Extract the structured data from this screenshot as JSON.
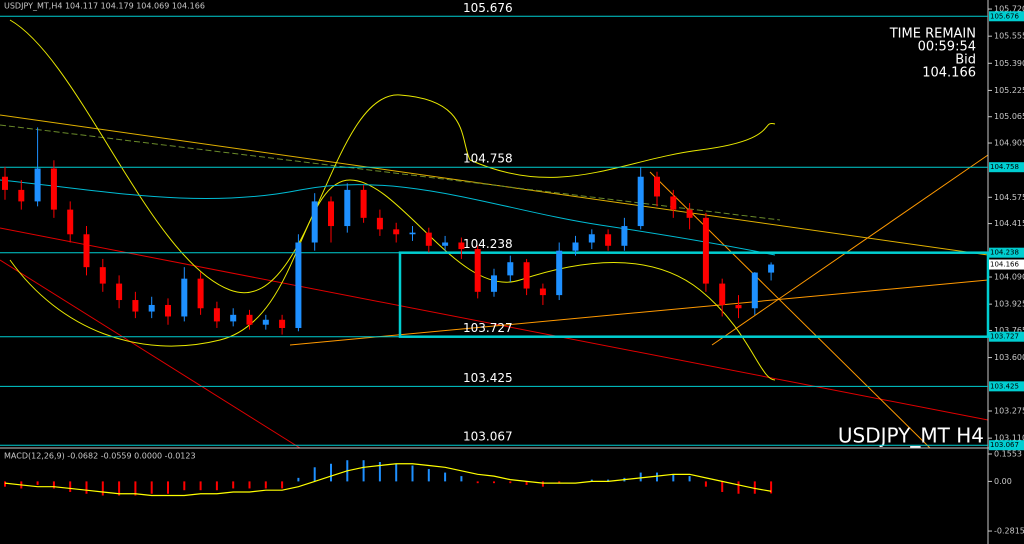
{
  "chart_data": [
    {
      "type": "candlestick",
      "title": "USDJPY_MT,H4 104.117 104.179 104.069 104.166",
      "watermark": "USDJPY_MT H4",
      "annotations": [
        "TIME REMAIN",
        "00:59:54",
        "Bid"
      ],
      "bid": 104.166,
      "open": [
        104.7,
        104.62,
        104.55,
        104.75,
        104.5,
        104.35,
        104.15,
        104.05,
        103.95,
        103.88,
        103.92,
        103.85,
        104.08,
        103.9,
        103.82,
        103.86,
        103.8,
        103.83,
        103.78,
        104.3,
        104.55,
        104.4,
        104.62,
        104.45,
        104.38,
        104.35,
        104.36,
        104.28,
        104.3,
        104.26,
        104.0,
        104.1,
        104.18,
        104.02,
        103.98,
        104.25,
        104.3,
        104.35,
        104.28,
        104.4,
        104.7,
        104.58,
        104.5,
        104.45,
        104.05,
        103.92,
        103.9,
        104.117
      ],
      "high": [
        104.76,
        104.68,
        105.0,
        104.8,
        104.55,
        104.4,
        104.2,
        104.1,
        104.0,
        103.97,
        103.96,
        104.15,
        104.12,
        103.94,
        103.9,
        103.89,
        103.86,
        103.86,
        104.35,
        104.6,
        104.58,
        104.66,
        104.65,
        104.5,
        104.42,
        104.4,
        104.39,
        104.34,
        104.33,
        104.28,
        104.14,
        104.22,
        104.2,
        104.05,
        104.3,
        104.34,
        104.38,
        104.38,
        104.45,
        104.76,
        104.73,
        104.62,
        104.54,
        104.48,
        104.08,
        103.98,
        104.12,
        104.179
      ],
      "low": [
        104.56,
        104.5,
        104.52,
        104.45,
        104.3,
        104.1,
        104.0,
        103.9,
        103.84,
        103.84,
        103.8,
        103.82,
        103.86,
        103.78,
        103.79,
        103.77,
        103.77,
        103.74,
        103.76,
        104.25,
        104.3,
        104.36,
        104.42,
        104.34,
        104.3,
        104.31,
        104.24,
        104.25,
        104.2,
        103.96,
        103.97,
        104.06,
        103.98,
        103.92,
        103.95,
        104.22,
        104.26,
        104.25,
        104.25,
        104.38,
        104.52,
        104.45,
        104.38,
        104.0,
        103.85,
        103.84,
        103.86,
        104.069
      ],
      "close": [
        104.62,
        104.55,
        104.75,
        104.5,
        104.35,
        104.15,
        104.05,
        103.95,
        103.88,
        103.92,
        103.85,
        104.08,
        103.9,
        103.82,
        103.86,
        103.8,
        103.83,
        103.78,
        104.3,
        104.55,
        104.4,
        104.62,
        104.45,
        104.38,
        104.35,
        104.36,
        104.28,
        104.3,
        104.26,
        104.0,
        104.1,
        104.18,
        104.02,
        103.98,
        104.25,
        104.3,
        104.35,
        104.28,
        104.4,
        104.7,
        104.58,
        104.5,
        104.45,
        104.05,
        103.92,
        103.9,
        104.117,
        104.166
      ],
      "up_color": "#1e90ff",
      "down_color": "#ff0000",
      "levels": [
        105.676,
        104.758,
        104.238,
        103.727,
        103.425,
        103.067
      ],
      "level_color": "#00ced1",
      "ylim": [
        103.05,
        105.775
      ],
      "yticks": [
        {
          "value": 105.72,
          "label": "105.720"
        },
        105.555,
        {
          "value": 105.39,
          "label": "105.390"
        },
        105.225,
        105.065,
        104.905,
        104.575,
        104.415,
        {
          "value": 104.09,
          "label": "104.090"
        },
        103.925,
        103.765,
        {
          "value": 103.6,
          "label": "103.600"
        },
        103.275,
        {
          "value": 103.11,
          "label": "103.110"
        }
      ]
    },
    {
      "type": "bar",
      "title": "MACD(12,26,9) -0.0682 -0.0559 0.0000 -0.0123",
      "values": [
        -0.03,
        -0.04,
        -0.02,
        -0.04,
        -0.06,
        -0.07,
        -0.08,
        -0.08,
        -0.08,
        -0.07,
        -0.07,
        -0.05,
        -0.05,
        -0.05,
        -0.04,
        -0.04,
        -0.04,
        -0.04,
        0.02,
        0.08,
        0.1,
        0.12,
        0.12,
        0.11,
        0.1,
        0.09,
        0.07,
        0.05,
        0.03,
        -0.01,
        -0.01,
        -0.01,
        -0.02,
        -0.03,
        -0.01,
        0.0,
        0.01,
        0.01,
        0.02,
        0.05,
        0.05,
        0.04,
        0.03,
        -0.03,
        -0.06,
        -0.07,
        -0.07,
        -0.0682
      ],
      "signal": [
        -0.01,
        -0.02,
        -0.03,
        -0.03,
        -0.04,
        -0.05,
        -0.06,
        -0.07,
        -0.07,
        -0.08,
        -0.08,
        -0.08,
        -0.07,
        -0.07,
        -0.06,
        -0.06,
        -0.05,
        -0.05,
        -0.03,
        0.0,
        0.03,
        0.06,
        0.08,
        0.09,
        0.1,
        0.1,
        0.09,
        0.08,
        0.06,
        0.04,
        0.03,
        0.01,
        0.0,
        -0.01,
        -0.01,
        -0.01,
        0.0,
        0.0,
        0.01,
        0.02,
        0.03,
        0.04,
        0.04,
        0.02,
        0.0,
        -0.02,
        -0.04,
        -0.0559
      ],
      "up_color": "#1e90ff",
      "down_color": "#ff0000",
      "signal_color": "#ffff00",
      "ylim": [
        -0.355,
        0.178
      ],
      "yticks": [
        0.1553,
        {
          "value": 0,
          "label": "0.00"
        },
        -0.2815
      ]
    }
  ]
}
